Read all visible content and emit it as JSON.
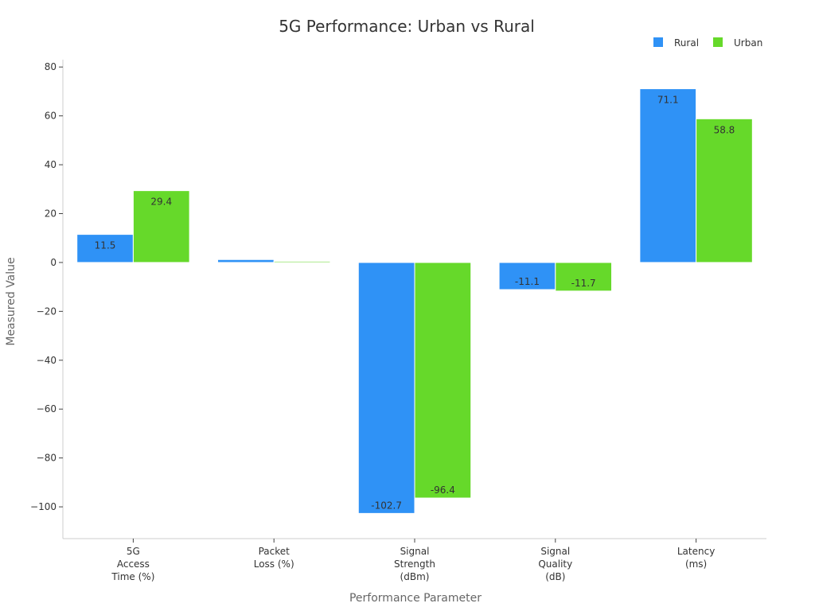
{
  "chart_data": {
    "type": "bar",
    "title": "5G Performance: Urban vs Rural",
    "xlabel": "Performance Parameter",
    "ylabel": "Measured Value",
    "ylim": [
      -113,
      83
    ],
    "yticks": [
      -100,
      -80,
      -60,
      -40,
      -20,
      0,
      20,
      40,
      60,
      80
    ],
    "ytick_labels": [
      "−100",
      "−80",
      "−60",
      "−40",
      "−20",
      "0",
      "20",
      "40",
      "60",
      "80"
    ],
    "categories": [
      [
        "5G",
        "Access",
        "Time (%)"
      ],
      [
        "Packet",
        "Loss (%)"
      ],
      [
        "Signal",
        "Strength",
        "(dBm)"
      ],
      [
        "Signal",
        "Quality",
        "(dB)"
      ],
      [
        "Latency",
        "(ms)"
      ]
    ],
    "series": [
      {
        "name": "Rural",
        "color": "#2f92f6",
        "values": [
          11.5,
          1.2,
          -102.7,
          -11.1,
          71.1
        ],
        "labels": [
          "11.5",
          "",
          "-102.7",
          "-11.1",
          "71.1"
        ]
      },
      {
        "name": "Urban",
        "color": "#66d92a",
        "values": [
          29.4,
          0.5,
          -96.4,
          -11.7,
          58.8
        ],
        "labels": [
          "29.4",
          "",
          "-96.4",
          "-11.7",
          "58.8"
        ]
      }
    ],
    "legend_position": "top-right",
    "grid": false
  }
}
